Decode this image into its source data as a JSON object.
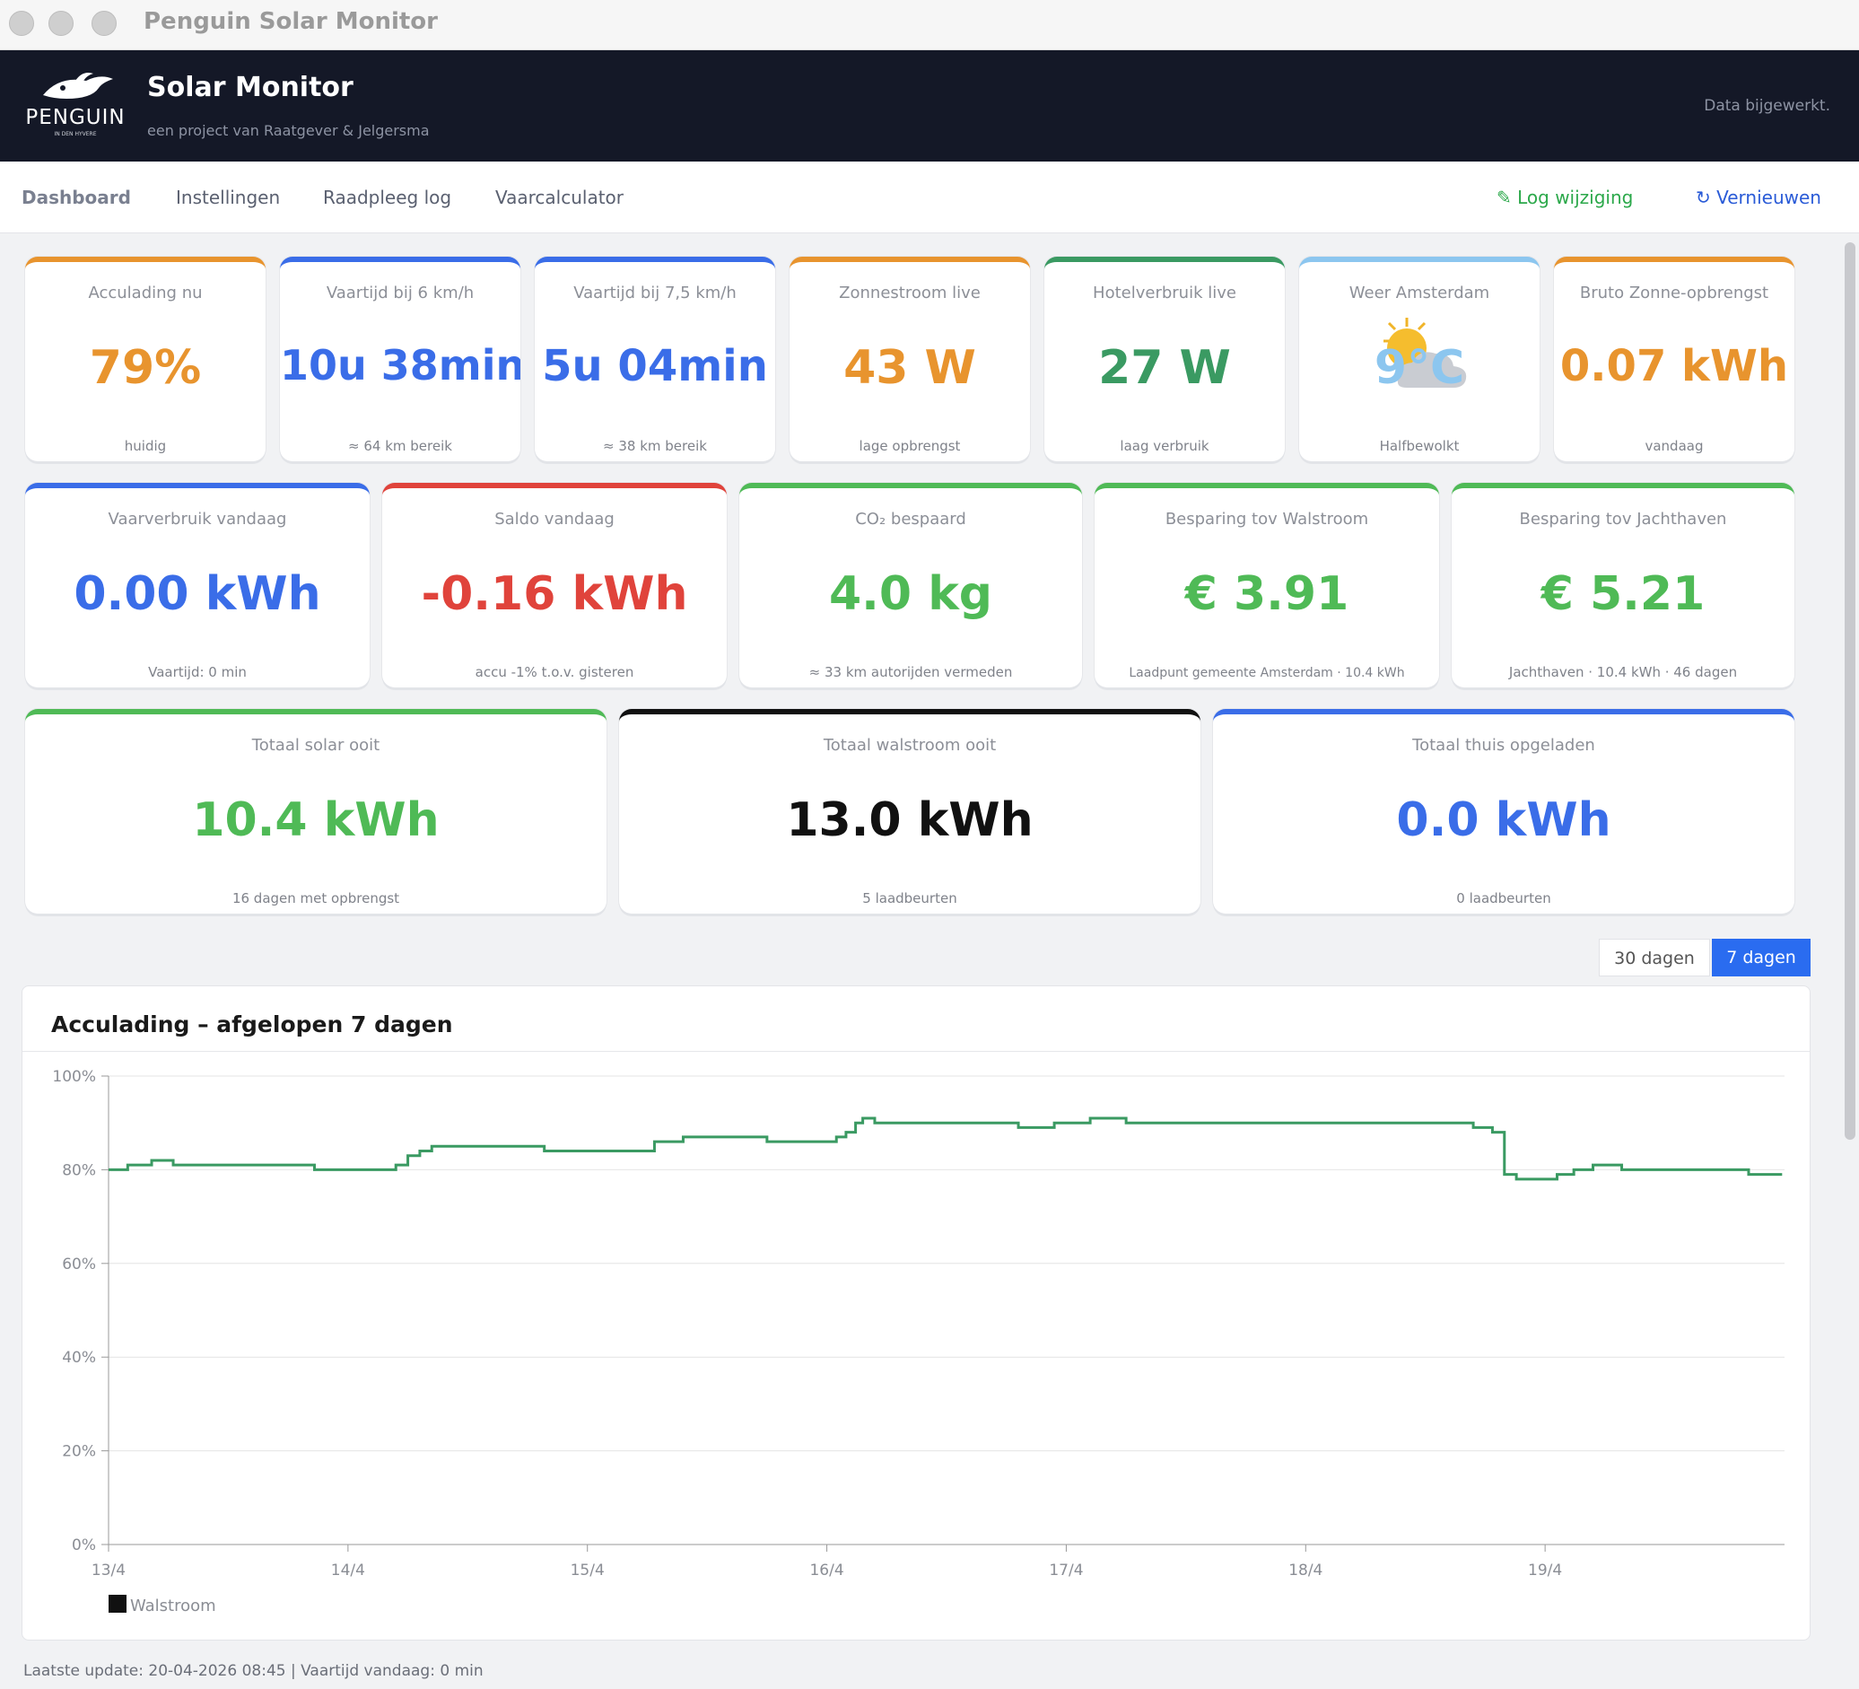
{
  "window": {
    "title": "Penguin Solar Monitor"
  },
  "header": {
    "logo_word": "PENGUIN",
    "logo_tagline": "IN DEN HYVERE",
    "title": "Solar Monitor",
    "subtitle": "een project van Raatgever & Jelgersma",
    "status": "Data bijgewerkt."
  },
  "nav": {
    "items": [
      "Dashboard",
      "Instellingen",
      "Raadpleeg log",
      "Vaarcalculator"
    ],
    "log_label": "✎ Log wijziging",
    "refresh_label": "↻ Vernieuwen"
  },
  "colors": {
    "orange": "#e8942e",
    "blue": "#3a6de8",
    "green": "#4fba56",
    "red": "#e0433b",
    "black": "#111111",
    "lightblue": "#8cc6ef",
    "line": "#3a9a62"
  },
  "row1": [
    {
      "label": "Acculading nu",
      "value": "79%",
      "sub": "huidig",
      "color": "#e8942e"
    },
    {
      "label": "Vaartijd bij 6 km/h",
      "value": "10u 38min",
      "sub": "≈ 64 km bereik",
      "color": "#3a6de8"
    },
    {
      "label": "Vaartijd bij 7,5 km/h",
      "value": "5u 04min",
      "sub": "≈ 38 km bereik",
      "color": "#3a6de8"
    },
    {
      "label": "Zonnestroom live",
      "value": "43 W",
      "sub": "lage opbrengst",
      "color": "#e8942e"
    },
    {
      "label": "Hotelverbruik live",
      "value": "27 W",
      "sub": "laag verbruik",
      "color": "#3a9a62"
    },
    {
      "label": "Weer Amsterdam",
      "value": "9°C",
      "sub": "Halfbewolkt",
      "color": "#8cc6ef",
      "icon": "partly-cloudy"
    },
    {
      "label": "Bruto Zonne-opbrengst",
      "value": "0.07 kWh",
      "sub": "vandaag",
      "color": "#e8942e"
    }
  ],
  "row2": [
    {
      "label": "Vaarverbruik vandaag",
      "value": "0.00 kWh",
      "sub": "Vaartijd: 0 min",
      "color": "#3a6de8"
    },
    {
      "label": "Saldo vandaag",
      "value": "-0.16 kWh",
      "sub": "accu -1% t.o.v. gisteren",
      "color": "#e0433b"
    },
    {
      "label": "CO₂ bespaard",
      "value": "4.0 kg",
      "sub": "≈ 33 km autorijden vermeden",
      "color": "#4fba56"
    },
    {
      "label": "Besparing tov Walstroom",
      "value": "€ 3.91",
      "sub": "Laadpunt gemeente Amsterdam · 10.4 kWh",
      "color": "#4fba56"
    },
    {
      "label": "Besparing tov Jachthaven",
      "value": "€ 5.21",
      "sub": "Jachthaven · 10.4 kWh · 46 dagen",
      "color": "#4fba56"
    }
  ],
  "row3": [
    {
      "label": "Totaal solar ooit",
      "value": "10.4 kWh",
      "sub": "16 dagen met opbrengst",
      "color": "#4fba56"
    },
    {
      "label": "Totaal walstroom ooit",
      "value": "13.0 kWh",
      "sub": "5 laadbeurten",
      "color": "#111111"
    },
    {
      "label": "Totaal thuis opgeladen",
      "value": "0.0 kWh",
      "sub": "0 laadbeurten",
      "color": "#3a6de8"
    }
  ],
  "range_buttons": [
    "30 dagen",
    "7 dagen"
  ],
  "chart_data": {
    "type": "line",
    "title": "Acculading – afgelopen 7 dagen",
    "ylim": [
      0,
      100
    ],
    "y_ticks": [
      "0%",
      "20%",
      "40%",
      "60%",
      "80%",
      "100%"
    ],
    "x_ticks": [
      "13/4",
      "14/4",
      "15/4",
      "16/4",
      "17/4",
      "18/4",
      "19/4"
    ],
    "xlim": [
      0,
      7
    ],
    "grid": true,
    "legend": [
      {
        "name": "Walstroom",
        "color": "#111111"
      }
    ],
    "legend_position": "bottom-left",
    "series": [
      {
        "name": "",
        "color": "#3a9a62",
        "x": [
          0.0,
          0.08,
          0.18,
          0.27,
          0.36,
          0.6,
          0.86,
          1.05,
          1.2,
          1.25,
          1.3,
          1.35,
          1.6,
          1.82,
          1.92,
          2.1,
          2.22,
          2.28,
          2.4,
          2.75,
          3.0,
          3.04,
          3.08,
          3.12,
          3.15,
          3.2,
          3.28,
          3.6,
          3.8,
          3.95,
          4.1,
          4.2,
          4.25,
          4.32,
          4.4,
          4.58,
          4.8,
          5.0,
          5.5,
          5.7,
          5.78,
          5.83,
          5.88,
          5.9,
          6.0,
          6.05,
          6.12,
          6.2,
          6.3,
          6.32,
          6.5,
          6.6,
          6.75,
          6.85,
          6.99
        ],
        "y": [
          80,
          81,
          82,
          81,
          81,
          81,
          80,
          80,
          81,
          83,
          84,
          85,
          85,
          84,
          84,
          84,
          84,
          86,
          87,
          86,
          86,
          87,
          88,
          90,
          91,
          90,
          90,
          90,
          89,
          90,
          91,
          91,
          90,
          90,
          90,
          90,
          90,
          90,
          90,
          89,
          88,
          79,
          78,
          78,
          78,
          79,
          80,
          81,
          81,
          80,
          80,
          80,
          80,
          79,
          79
        ]
      }
    ]
  },
  "footer": "Laatste update: 20-04-2026 08:45  |  Vaartijd vandaag: 0 min"
}
